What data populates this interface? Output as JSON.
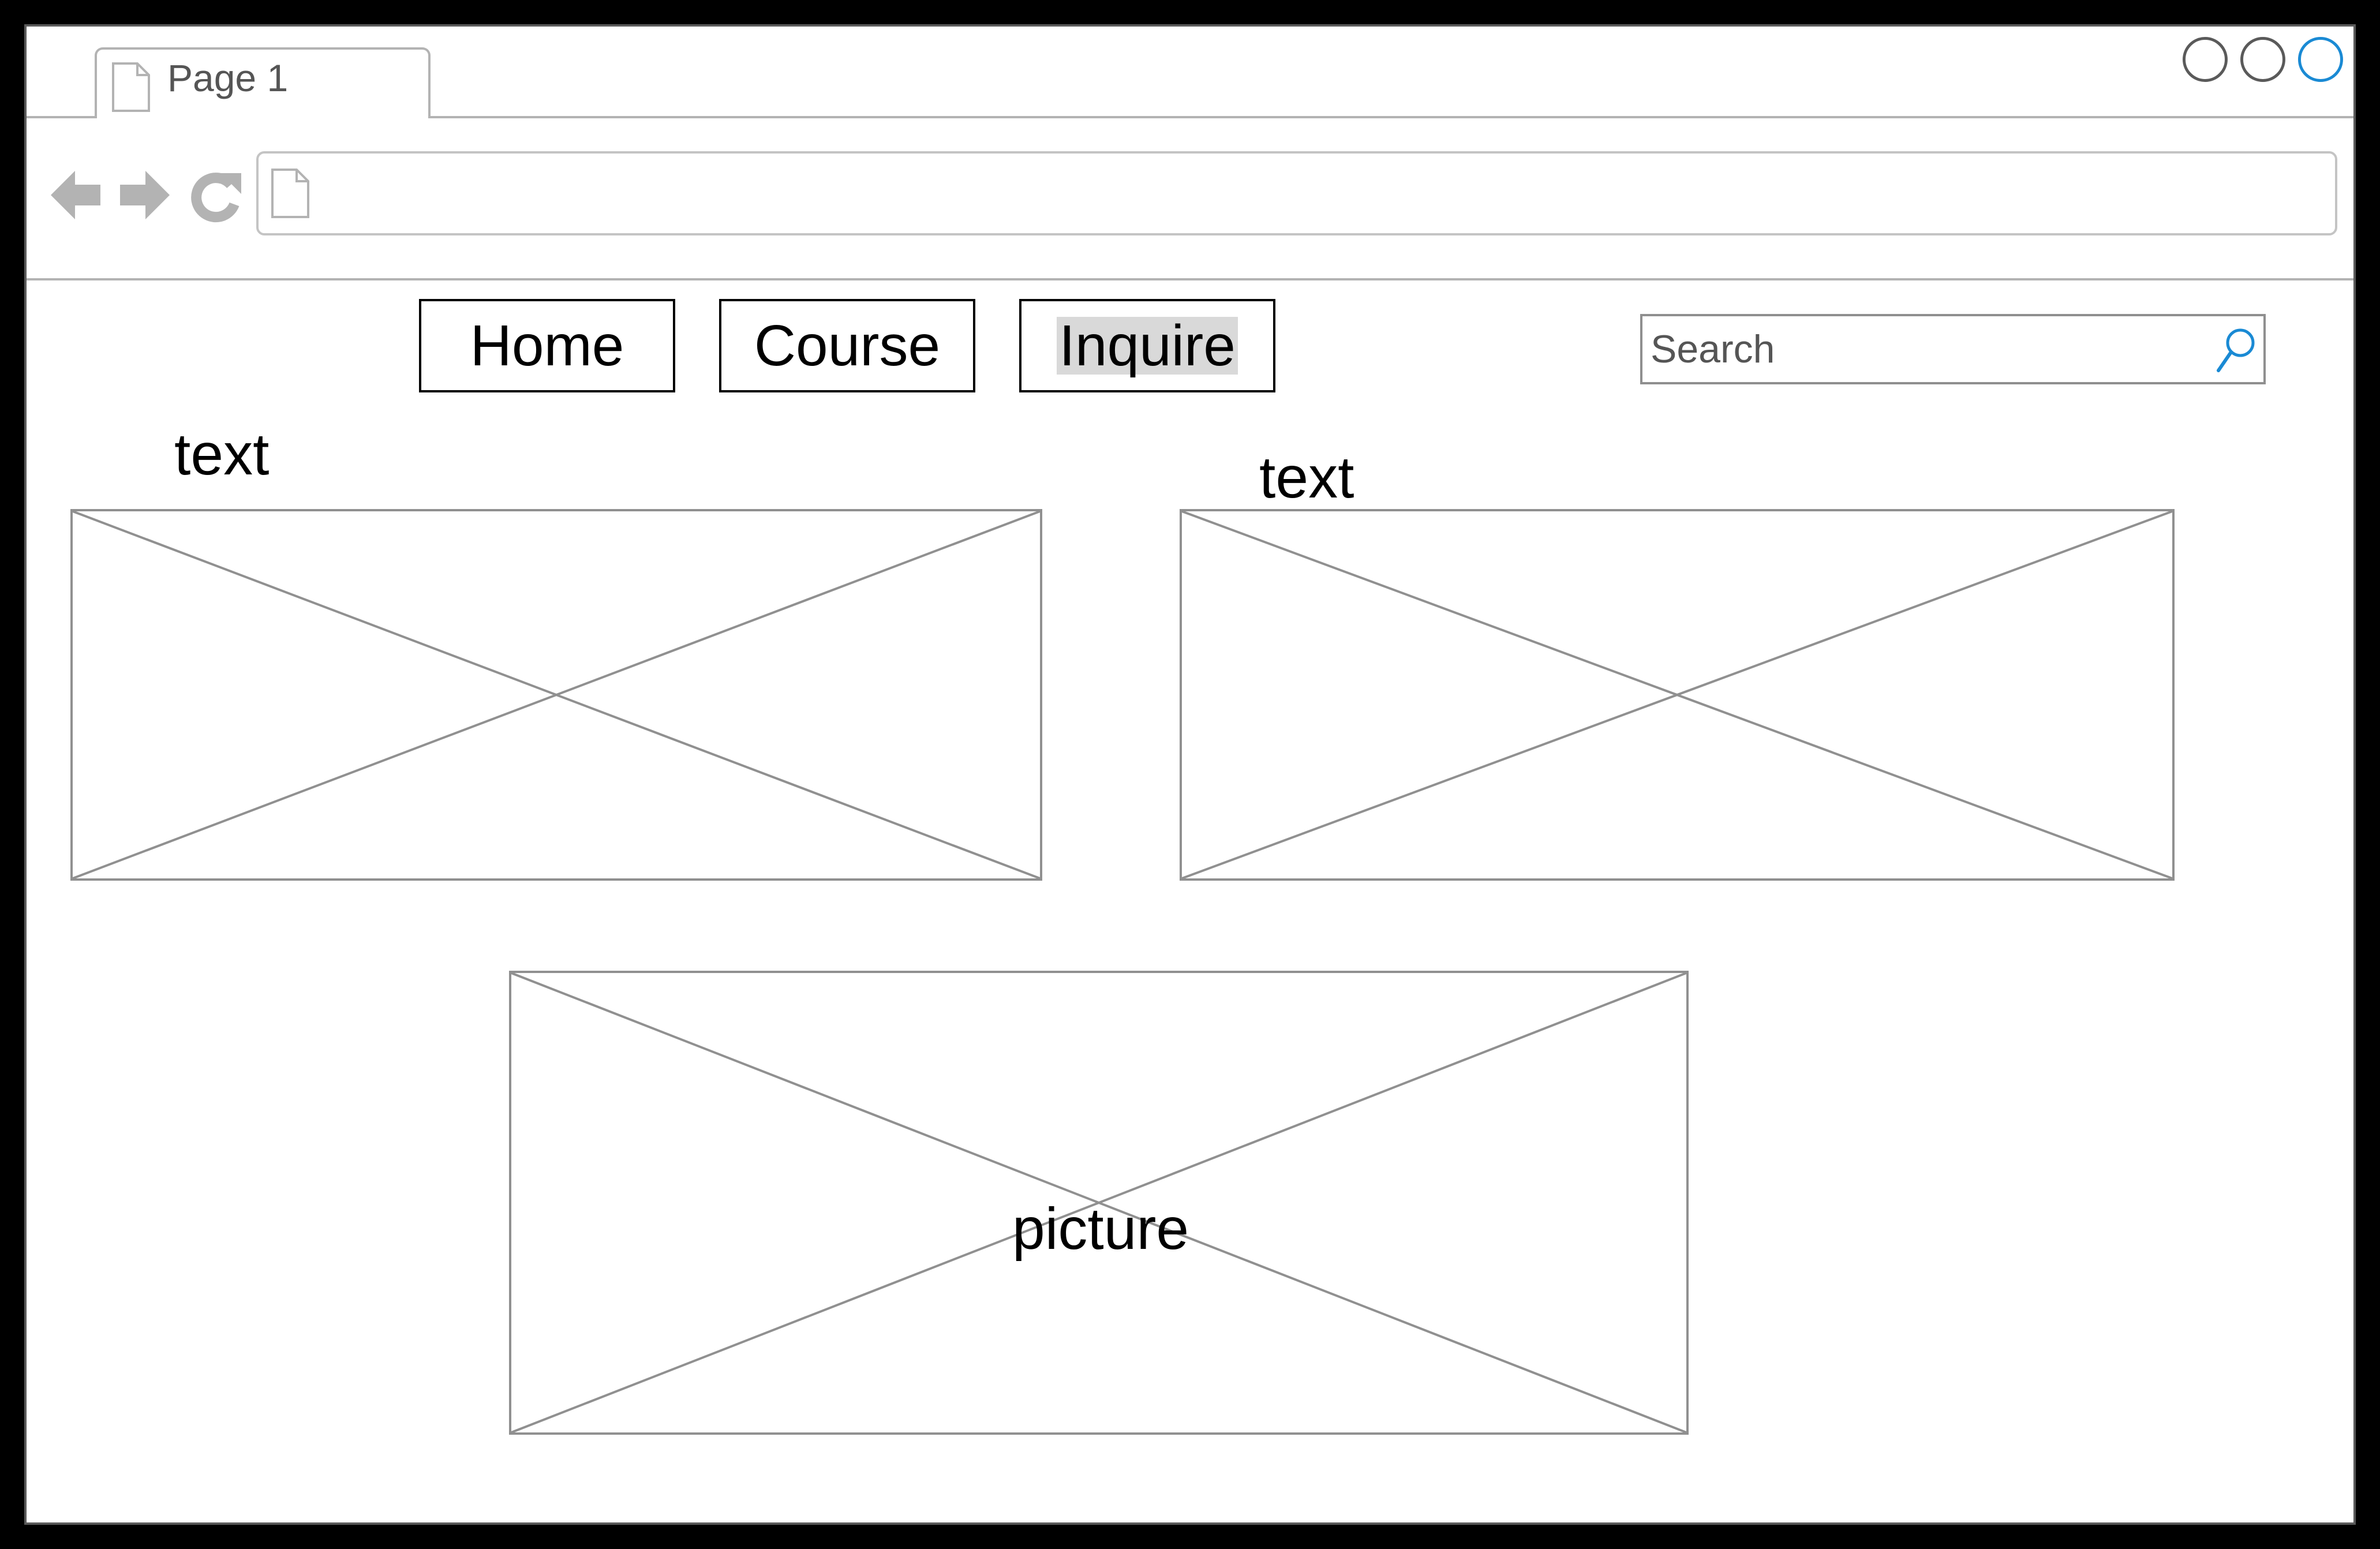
{
  "browser": {
    "tab_title": "Page 1",
    "url": ""
  },
  "nav": {
    "items": [
      {
        "label": "Home"
      },
      {
        "label": "Course"
      },
      {
        "label": "Inquire"
      }
    ]
  },
  "search": {
    "placeholder": "Search",
    "value": ""
  },
  "content": {
    "left_label": "text",
    "right_label": "text",
    "bottom_label": "picture"
  },
  "colors": {
    "accent": "#1a8ad4",
    "border": "#909090",
    "frame": "#000000"
  }
}
